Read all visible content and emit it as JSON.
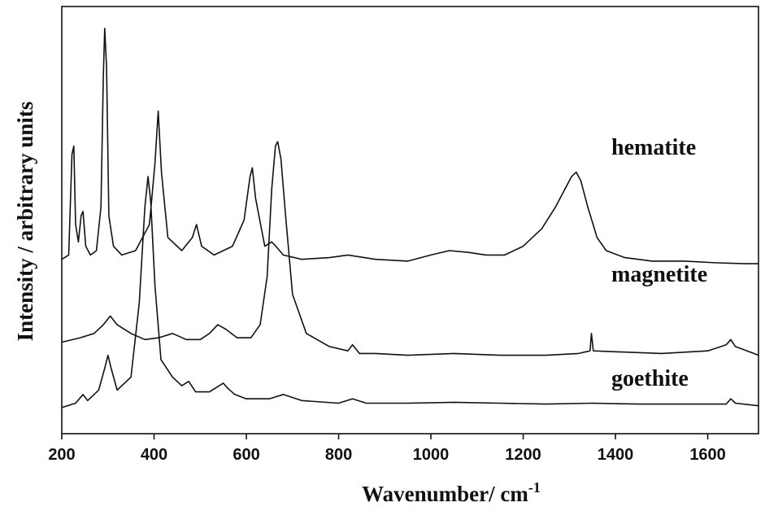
{
  "chart_data": {
    "type": "line",
    "xlabel": "Wavenumber/ cm",
    "xlabel_sup": "-1",
    "ylabel": "Intensity / arbitrary units",
    "xlim": [
      200,
      1710
    ],
    "x_ticks": [
      200,
      400,
      600,
      800,
      1000,
      1200,
      1400,
      1600
    ],
    "y_ticks": "none",
    "grid": false,
    "legend": "none",
    "note": "y values in arbitrary intensity units; each trace vertically offset as in the figure",
    "series": [
      {
        "name": "hematite",
        "x": [
          200,
          215,
          222,
          226,
          230,
          236,
          242,
          246,
          252,
          262,
          275,
          285,
          290,
          293,
          297,
          302,
          312,
          330,
          360,
          390,
          402,
          409,
          416,
          430,
          460,
          483,
          492,
          503,
          530,
          570,
          595,
          608,
          613,
          620,
          640,
          655,
          664,
          680,
          720,
          780,
          820,
          880,
          950,
          1000,
          1040,
          1080,
          1120,
          1160,
          1200,
          1240,
          1270,
          1290,
          1305,
          1315,
          1325,
          1340,
          1360,
          1380,
          1420,
          1480,
          1550,
          1620,
          1680,
          1710
        ],
        "y": [
          1.7,
          1.75,
          2.9,
          3.0,
          2.1,
          1.9,
          2.2,
          2.25,
          1.85,
          1.75,
          1.8,
          2.3,
          3.8,
          4.35,
          3.9,
          2.2,
          1.85,
          1.75,
          1.8,
          2.1,
          2.8,
          3.4,
          2.7,
          1.95,
          1.8,
          1.95,
          2.1,
          1.85,
          1.75,
          1.85,
          2.15,
          2.65,
          2.75,
          2.4,
          1.85,
          1.9,
          1.85,
          1.75,
          1.7,
          1.72,
          1.75,
          1.7,
          1.68,
          1.75,
          1.8,
          1.78,
          1.75,
          1.75,
          1.85,
          2.05,
          2.3,
          2.5,
          2.65,
          2.7,
          2.6,
          2.3,
          1.95,
          1.8,
          1.72,
          1.68,
          1.68,
          1.66,
          1.65,
          1.65
        ]
      },
      {
        "name": "magnetite",
        "x": [
          200,
          240,
          270,
          290,
          305,
          320,
          350,
          380,
          410,
          440,
          470,
          500,
          520,
          538,
          555,
          580,
          610,
          630,
          645,
          655,
          663,
          668,
          675,
          685,
          700,
          730,
          780,
          820,
          830,
          845,
          880,
          950,
          1050,
          1150,
          1250,
          1320,
          1345,
          1348,
          1352,
          1400,
          1500,
          1600,
          1640,
          1650,
          1660,
          1700,
          1710
        ],
        "y": [
          0.75,
          0.8,
          0.85,
          0.95,
          1.05,
          0.95,
          0.85,
          0.78,
          0.8,
          0.85,
          0.78,
          0.78,
          0.85,
          0.95,
          0.9,
          0.8,
          0.8,
          0.95,
          1.5,
          2.5,
          3.0,
          3.05,
          2.85,
          2.2,
          1.3,
          0.85,
          0.7,
          0.65,
          0.72,
          0.62,
          0.62,
          0.6,
          0.62,
          0.6,
          0.6,
          0.62,
          0.65,
          0.85,
          0.65,
          0.64,
          0.62,
          0.65,
          0.72,
          0.78,
          0.7,
          0.62,
          0.6
        ]
      },
      {
        "name": "goethite",
        "x": [
          200,
          230,
          246,
          256,
          280,
          293,
          300,
          307,
          320,
          350,
          368,
          380,
          387,
          393,
          402,
          415,
          440,
          460,
          475,
          490,
          520,
          550,
          560,
          575,
          600,
          650,
          680,
          720,
          800,
          830,
          860,
          950,
          1050,
          1150,
          1250,
          1350,
          1450,
          1550,
          1640,
          1650,
          1660,
          1710
        ],
        "y": [
          0.0,
          0.05,
          0.15,
          0.08,
          0.2,
          0.45,
          0.6,
          0.45,
          0.2,
          0.35,
          1.2,
          2.3,
          2.65,
          2.35,
          1.4,
          0.55,
          0.35,
          0.25,
          0.3,
          0.18,
          0.18,
          0.28,
          0.22,
          0.15,
          0.1,
          0.1,
          0.15,
          0.08,
          0.05,
          0.1,
          0.05,
          0.05,
          0.06,
          0.05,
          0.04,
          0.05,
          0.04,
          0.04,
          0.04,
          0.1,
          0.05,
          0.02
        ]
      }
    ]
  }
}
